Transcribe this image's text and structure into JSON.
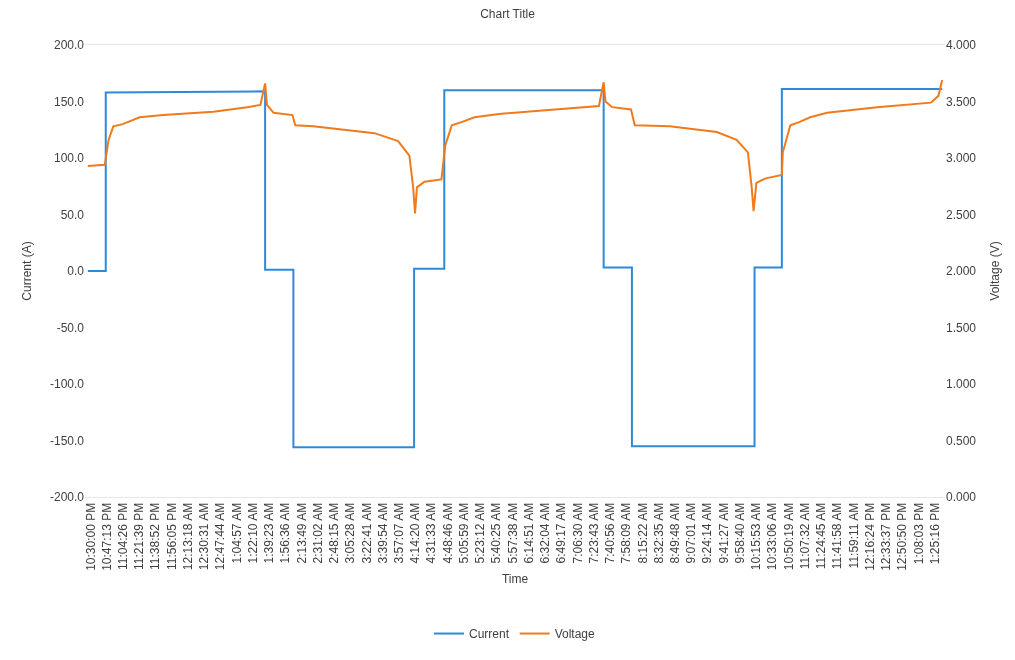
{
  "chart_data": {
    "type": "line",
    "title": "Chart Title",
    "xlabel": "Time",
    "ylabel": "Current (A)",
    "y2label": "Voltage (V)",
    "series": [
      {
        "name": "Current",
        "color": "#2e8ad8",
        "x": [
          "2000-01-01T22:27",
          "2000-01-01T22:46",
          "2000-01-01T22:46",
          "2000-01-02T01:35",
          "2000-01-02T01:35",
          "2000-01-02T02:05",
          "2000-01-02T02:05",
          "2000-01-02T04:13",
          "2000-01-02T04:13",
          "2000-01-02T04:45",
          "2000-01-02T04:45",
          "2000-01-02T07:34",
          "2000-01-02T07:34",
          "2000-01-02T08:04",
          "2000-01-02T08:04",
          "2000-01-02T10:14",
          "2000-01-02T10:14",
          "2000-01-02T10:43",
          "2000-01-02T10:43",
          "2000-01-02T13:33"
        ],
        "values": [
          0,
          0,
          158,
          159,
          1,
          1,
          -156,
          -156,
          2,
          2,
          160,
          160,
          3,
          3,
          -155,
          -155,
          3,
          3,
          161,
          161
        ]
      },
      {
        "name": "Voltage",
        "color": "#f07a1c",
        "axis": "y2",
        "x": [
          "2000-01-01T22:27",
          "2000-01-01T22:45",
          "2000-01-01T22:49",
          "2000-01-01T22:54",
          "2000-01-01T23:04",
          "2000-01-01T23:22",
          "2000-01-01T23:47",
          "2000-01-02T00:40",
          "2000-01-02T01:16",
          "2000-01-02T01:30",
          "2000-01-02T01:35",
          "2000-01-02T01:37",
          "2000-01-02T01:44",
          "2000-01-02T02:04",
          "2000-01-02T02:07",
          "2000-01-02T02:26",
          "2000-01-02T03:31",
          "2000-01-02T03:56",
          "2000-01-02T04:08",
          "2000-01-02T04:12",
          "2000-01-02T04:14",
          "2000-01-02T04:16",
          "2000-01-02T04:24",
          "2000-01-02T04:42",
          "2000-01-02T04:46",
          "2000-01-02T04:53",
          "2000-01-02T05:04",
          "2000-01-02T05:17",
          "2000-01-02T05:43",
          "2000-01-02T06:29",
          "2000-01-02T07:29",
          "2000-01-02T07:34",
          "2000-01-02T07:36",
          "2000-01-02T07:43",
          "2000-01-02T08:03",
          "2000-01-02T08:07",
          "2000-01-02T08:44",
          "2000-01-02T09:34",
          "2000-01-02T09:55",
          "2000-01-02T10:07",
          "2000-01-02T10:11",
          "2000-01-02T10:13",
          "2000-01-02T10:16",
          "2000-01-02T10:26",
          "2000-01-02T10:43",
          "2000-01-02T10:44",
          "2000-01-02T10:52",
          "2000-01-02T11:02",
          "2000-01-02T11:13",
          "2000-01-02T11:31",
          "2000-01-02T12:24",
          "2000-01-02T13:21",
          "2000-01-02T13:29",
          "2000-01-02T13:33"
        ],
        "values": [
          2.93,
          2.94,
          3.16,
          3.28,
          3.3,
          3.36,
          3.38,
          3.41,
          3.45,
          3.47,
          3.66,
          3.47,
          3.4,
          3.38,
          3.29,
          3.28,
          3.22,
          3.15,
          3.02,
          2.74,
          2.51,
          2.74,
          2.79,
          2.81,
          3.11,
          3.29,
          3.32,
          3.36,
          3.39,
          3.42,
          3.46,
          3.67,
          3.5,
          3.45,
          3.43,
          3.29,
          3.28,
          3.23,
          3.16,
          3.05,
          2.74,
          2.53,
          2.78,
          2.82,
          2.85,
          3.05,
          3.29,
          3.32,
          3.36,
          3.4,
          3.45,
          3.49,
          3.55,
          3.69
        ]
      }
    ],
    "xlim": [
      "2000-01-01T22:24",
      "2000-01-02T13:36"
    ],
    "xticks": [
      {
        "value": "2000-01-01T22:30:00",
        "label": "10:30:00 PM"
      },
      {
        "value": "2000-01-01T22:47:13",
        "label": "10:47:13 PM"
      },
      {
        "value": "2000-01-01T23:04:26",
        "label": "11:04:26 PM"
      },
      {
        "value": "2000-01-01T23:21:39",
        "label": "11:21:39 PM"
      },
      {
        "value": "2000-01-01T23:38:52",
        "label": "11:38:52 PM"
      },
      {
        "value": "2000-01-01T23:56:05",
        "label": "11:56:05 PM"
      },
      {
        "value": "2000-01-02T00:13:18",
        "label": "12:13:18 AM"
      },
      {
        "value": "2000-01-02T00:30:31",
        "label": "12:30:31 AM"
      },
      {
        "value": "2000-01-02T00:47:44",
        "label": "12:47:44 AM"
      },
      {
        "value": "2000-01-02T01:04:57",
        "label": "1:04:57 AM"
      },
      {
        "value": "2000-01-02T01:22:10",
        "label": "1:22:10 AM"
      },
      {
        "value": "2000-01-02T01:39:23",
        "label": "1:39:23 AM"
      },
      {
        "value": "2000-01-02T01:56:36",
        "label": "1:56:36 AM"
      },
      {
        "value": "2000-01-02T02:13:49",
        "label": "2:13:49 AM"
      },
      {
        "value": "2000-01-02T02:31:02",
        "label": "2:31:02 AM"
      },
      {
        "value": "2000-01-02T02:48:15",
        "label": "2:48:15 AM"
      },
      {
        "value": "2000-01-02T03:05:28",
        "label": "3:05:28 AM"
      },
      {
        "value": "2000-01-02T03:22:41",
        "label": "3:22:41 AM"
      },
      {
        "value": "2000-01-02T03:39:54",
        "label": "3:39:54 AM"
      },
      {
        "value": "2000-01-02T03:57:07",
        "label": "3:57:07 AM"
      },
      {
        "value": "2000-01-02T04:14:20",
        "label": "4:14:20 AM"
      },
      {
        "value": "2000-01-02T04:31:33",
        "label": "4:31:33 AM"
      },
      {
        "value": "2000-01-02T04:48:46",
        "label": "4:48:46 AM"
      },
      {
        "value": "2000-01-02T05:05:59",
        "label": "5:05:59 AM"
      },
      {
        "value": "2000-01-02T05:23:12",
        "label": "5:23:12 AM"
      },
      {
        "value": "2000-01-02T05:40:25",
        "label": "5:40:25 AM"
      },
      {
        "value": "2000-01-02T05:57:38",
        "label": "5:57:38 AM"
      },
      {
        "value": "2000-01-02T06:14:51",
        "label": "6:14:51 AM"
      },
      {
        "value": "2000-01-02T06:32:04",
        "label": "6:32:04 AM"
      },
      {
        "value": "2000-01-02T06:49:17",
        "label": "6:49:17 AM"
      },
      {
        "value": "2000-01-02T07:06:30",
        "label": "7:06:30 AM"
      },
      {
        "value": "2000-01-02T07:23:43",
        "label": "7:23:43 AM"
      },
      {
        "value": "2000-01-02T07:40:56",
        "label": "7:40:56 AM"
      },
      {
        "value": "2000-01-02T07:58:09",
        "label": "7:58:09 AM"
      },
      {
        "value": "2000-01-02T08:15:22",
        "label": "8:15:22 AM"
      },
      {
        "value": "2000-01-02T08:32:35",
        "label": "8:32:35 AM"
      },
      {
        "value": "2000-01-02T08:49:48",
        "label": "8:49:48 AM"
      },
      {
        "value": "2000-01-02T09:07:01",
        "label": "9:07:01 AM"
      },
      {
        "value": "2000-01-02T09:24:14",
        "label": "9:24:14 AM"
      },
      {
        "value": "2000-01-02T09:41:27",
        "label": "9:41:27 AM"
      },
      {
        "value": "2000-01-02T09:58:40",
        "label": "9:58:40 AM"
      },
      {
        "value": "2000-01-02T10:15:53",
        "label": "10:15:53 AM"
      },
      {
        "value": "2000-01-02T10:33:06",
        "label": "10:33:06 AM"
      },
      {
        "value": "2000-01-02T10:50:19",
        "label": "10:50:19 AM"
      },
      {
        "value": "2000-01-02T11:07:32",
        "label": "11:07:32 AM"
      },
      {
        "value": "2000-01-02T11:24:45",
        "label": "11:24:45 AM"
      },
      {
        "value": "2000-01-02T11:41:58",
        "label": "11:41:58 AM"
      },
      {
        "value": "2000-01-02T11:59:11",
        "label": "11:59:11 AM"
      },
      {
        "value": "2000-01-02T12:16:24",
        "label": "12:16:24 PM"
      },
      {
        "value": "2000-01-02T12:33:37",
        "label": "12:33:37 PM"
      },
      {
        "value": "2000-01-02T12:50:50",
        "label": "12:50:50 PM"
      },
      {
        "value": "2000-01-02T13:08:03",
        "label": "1:08:03 PM"
      },
      {
        "value": "2000-01-02T13:25:16",
        "label": "1:25:16 PM"
      }
    ],
    "ylim": [
      -200,
      200
    ],
    "yticks": [
      {
        "value": 200,
        "label": "200.0"
      },
      {
        "value": 150,
        "label": "150.0"
      },
      {
        "value": 100,
        "label": "100.0"
      },
      {
        "value": 50,
        "label": "50.0"
      },
      {
        "value": 0,
        "label": "0.0"
      },
      {
        "value": -50,
        "label": "-50.0"
      },
      {
        "value": -100,
        "label": "-100.0"
      },
      {
        "value": -150,
        "label": "-150.0"
      },
      {
        "value": -200,
        "label": "-200.0"
      }
    ],
    "y2lim": [
      0,
      4
    ],
    "y2ticks": [
      {
        "value": 4,
        "label": "4.000"
      },
      {
        "value": 3.5,
        "label": "3.500"
      },
      {
        "value": 3,
        "label": "3.000"
      },
      {
        "value": 2.5,
        "label": "2.500"
      },
      {
        "value": 2,
        "label": "2.000"
      },
      {
        "value": 1.5,
        "label": "1.500"
      },
      {
        "value": 1,
        "label": "1.000"
      },
      {
        "value": 0.5,
        "label": "0.500"
      },
      {
        "value": 0,
        "label": "0.000"
      }
    ],
    "legend": "bottom",
    "marker": "none",
    "line_style": "solid"
  }
}
